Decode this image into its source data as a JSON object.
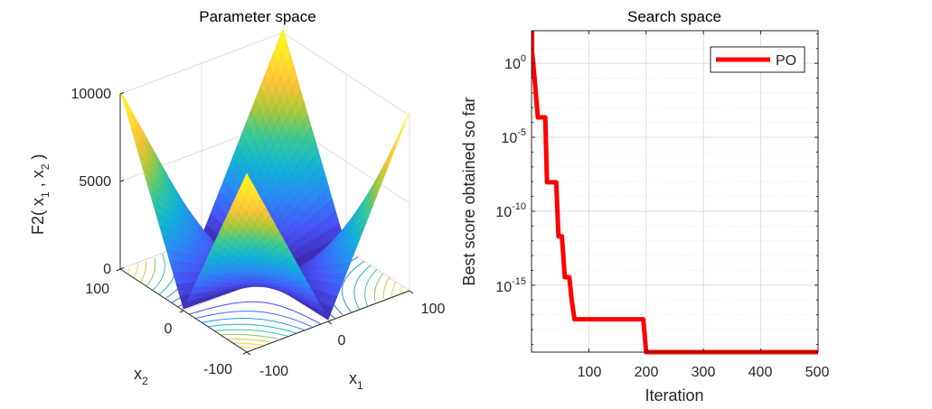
{
  "chart_data": [
    {
      "type": "surface",
      "title": "Parameter space",
      "function": "F2",
      "zlabel": {
        "a": "F2( x",
        "s1": "1",
        "b": " , x",
        "s2": "2",
        "c": " )"
      },
      "x1_label": {
        "main": "x",
        "sub": "1"
      },
      "x2_label": {
        "main": "x",
        "sub": "2"
      },
      "x1_ticks": [
        "-100",
        "0",
        "100"
      ],
      "x2_ticks": [
        "-100",
        "0",
        "100"
      ],
      "z_ticks": [
        "0",
        "5000",
        "10000"
      ],
      "x1_range": [
        -100,
        100
      ],
      "x2_range": [
        -100,
        100
      ],
      "zlim": [
        0,
        10200
      ],
      "contour_levels": [
        1000,
        2000,
        3000,
        4000,
        5000,
        6000,
        7000,
        8000,
        9000,
        10000
      ],
      "colormap": [
        "#3e26a8",
        "#4752f4",
        "#2d87f7",
        "#11b1d6",
        "#37c897",
        "#abc739",
        "#fec338",
        "#fde52c",
        "#f9fb14"
      ]
    },
    {
      "type": "line",
      "title": "Search space",
      "xlabel": "Iteration",
      "ylabel": "Best score obtained so far",
      "yscale": "log",
      "xlim": [
        0,
        500
      ],
      "ylim": [
        3e-20,
        160
      ],
      "grid": true,
      "x_ticks": [
        "100",
        "200",
        "300",
        "400",
        "500"
      ],
      "x_tick_values": [
        100,
        200,
        300,
        400,
        500
      ],
      "y_ticks": [
        {
          "base": "10",
          "exp": "0",
          "value": 0
        },
        {
          "base": "10",
          "exp": "-5",
          "value": -5
        },
        {
          "base": "10",
          "exp": "-10",
          "value": -10
        },
        {
          "base": "10",
          "exp": "-15",
          "value": -15
        }
      ],
      "legend": {
        "position": "top-right",
        "entries": [
          "PO"
        ]
      },
      "series": [
        {
          "name": "PO",
          "color": "#ff0000",
          "x": [
            1,
            1,
            3,
            11,
            24,
            27,
            43,
            47,
            53,
            58,
            66,
            70,
            75,
            195,
            200,
            500
          ],
          "y": [
            1000,
            6,
            1,
            0.00022,
            0.00022,
            9e-09,
            9e-09,
            2e-12,
            2e-12,
            3.5e-15,
            3.5e-15,
            1e-16,
            5e-18,
            5e-18,
            3e-20,
            3e-20
          ]
        }
      ]
    }
  ]
}
